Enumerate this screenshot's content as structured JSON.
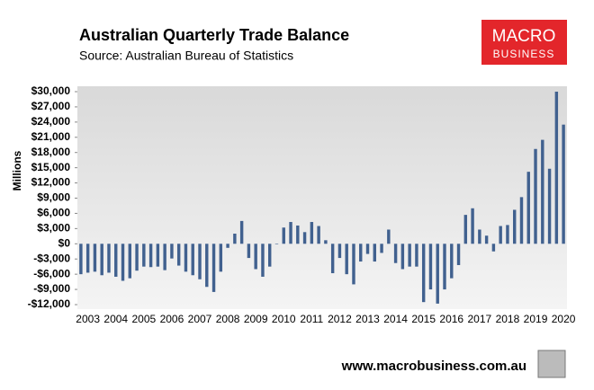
{
  "chart_data": {
    "type": "bar",
    "title": "Australian Quarterly Trade Balance",
    "subtitle": "Source: Australian Bureau of Statistics",
    "y_label": "Millions",
    "logo": [
      "MACRO",
      "BUSINESS"
    ],
    "footer": "www.macrobusiness.com.au",
    "color": "#41618f",
    "categories": [
      null,
      "2003",
      null,
      null,
      null,
      "2004",
      null,
      null,
      null,
      "2005",
      null,
      null,
      null,
      "2006",
      null,
      null,
      null,
      "2007",
      null,
      null,
      null,
      "2008",
      null,
      null,
      null,
      "2009",
      null,
      null,
      null,
      "2010",
      null,
      null,
      null,
      "2011",
      null,
      null,
      null,
      "2012",
      null,
      null,
      null,
      "2013",
      null,
      null,
      null,
      "2014",
      null,
      null,
      null,
      "2015",
      null,
      null,
      null,
      "2016",
      null,
      null,
      null,
      "2017",
      null,
      null,
      null,
      "2018",
      null,
      null,
      null,
      "2019",
      null,
      null,
      null,
      "2020"
    ],
    "values": [
      -6000,
      -5700,
      -5500,
      -6200,
      -5700,
      -6500,
      -7300,
      -6800,
      -5300,
      -4500,
      -4600,
      -4500,
      -5200,
      -2900,
      -4300,
      -5500,
      -6200,
      -7000,
      -8500,
      -9500,
      -5500,
      -800,
      2000,
      4500,
      -2800,
      -5000,
      -6500,
      -4500,
      -100,
      3200,
      4300,
      3600,
      2300,
      4300,
      3500,
      700,
      -5800,
      -2800,
      -6000,
      -8000,
      -3500,
      -2000,
      -3500,
      -1800,
      2800,
      -3800,
      -5000,
      -4500,
      -4500,
      -11500,
      -9000,
      -11800,
      -9000,
      -6800,
      -4200,
      5700,
      7000,
      2800,
      1600,
      -1500,
      3500,
      3700,
      6700,
      9200,
      14200,
      18700,
      20500,
      14800,
      30000,
      23500
    ],
    "ylim": [
      -12000,
      30000
    ],
    "yticks": [
      {
        "value": -12000,
        "label": "-$12,000"
      },
      {
        "value": -9000,
        "label": "-$9,000"
      },
      {
        "value": -6000,
        "label": "-$6,000"
      },
      {
        "value": -3000,
        "label": "-$3,000"
      },
      {
        "value": 0,
        "label": "$0"
      },
      {
        "value": 3000,
        "label": "$3,000"
      },
      {
        "value": 6000,
        "label": "$6,000"
      },
      {
        "value": 9000,
        "label": "$9,000"
      },
      {
        "value": 12000,
        "label": "$12,000"
      },
      {
        "value": 15000,
        "label": "$15,000"
      },
      {
        "value": 18000,
        "label": "$18,000"
      },
      {
        "value": 21000,
        "label": "$21,000"
      },
      {
        "value": 24000,
        "label": "$24,000"
      },
      {
        "value": 27000,
        "label": "$27,000"
      },
      {
        "value": 30000,
        "label": "$30,000"
      }
    ]
  }
}
